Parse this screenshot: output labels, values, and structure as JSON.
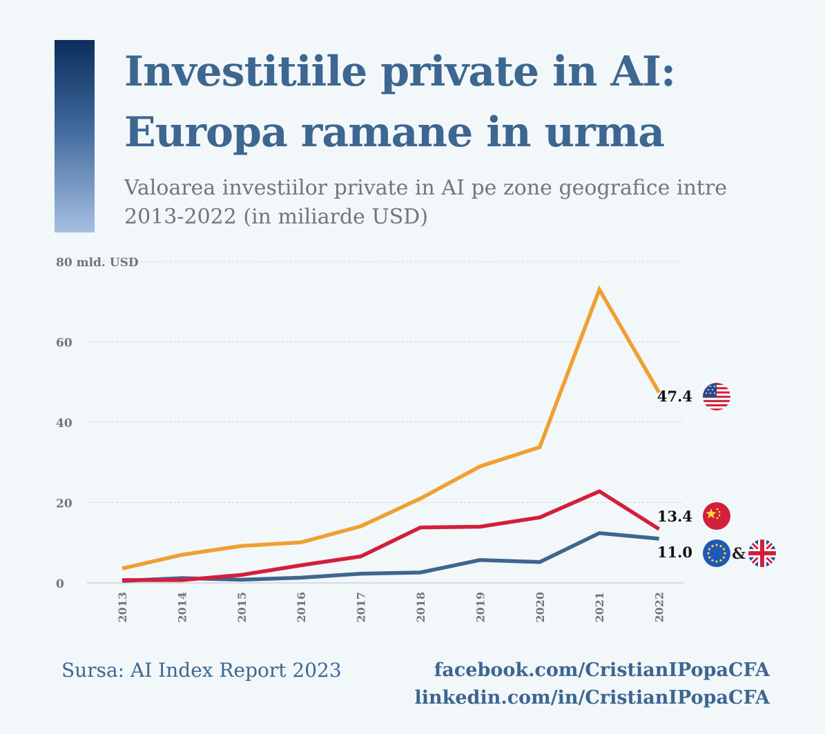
{
  "title_line1": "Investitiile private in AI:",
  "title_line2": "Europa ramane in urma",
  "subtitle_line1": "Valoarea investiilor private in AI pe zone geografice intre",
  "subtitle_line2": "2013-2022 (in miliarde USD)",
  "colors": {
    "accent_dark": "#0b2d5c",
    "accent_light": "#a6bfe2",
    "title": "#3d6690",
    "usa": "#f0a030",
    "china": "#d21f3c",
    "europe": "#3d6690"
  },
  "chart_data": {
    "type": "line",
    "x": [
      "2013",
      "2014",
      "2015",
      "2016",
      "2017",
      "2018",
      "2019",
      "2020",
      "2021",
      "2022"
    ],
    "y_axis": {
      "ticks": [
        0,
        20,
        40,
        60,
        80
      ],
      "tick_labels": [
        "0",
        "20",
        "40",
        "60",
        "80 mld. USD"
      ],
      "ylim": [
        0,
        80
      ]
    },
    "grid": true,
    "series": [
      {
        "key": "usa",
        "values": [
          3.6,
          7.0,
          9.2,
          10.1,
          14.1,
          21.0,
          29.0,
          33.8,
          73.0,
          47.4
        ],
        "end_label": "47.4",
        "flag_icons": [
          "usa-flag-icon"
        ]
      },
      {
        "key": "china",
        "values": [
          0.7,
          0.7,
          2.0,
          4.4,
          6.6,
          13.8,
          14.0,
          16.3,
          22.8,
          13.4
        ],
        "end_label": "13.4",
        "flag_icons": [
          "china-flag-icon"
        ]
      },
      {
        "key": "europe",
        "values": [
          0.5,
          1.2,
          0.8,
          1.3,
          2.3,
          2.6,
          5.7,
          5.2,
          12.4,
          11.0
        ],
        "end_label": "11.0",
        "flag_icons": [
          "eu-flag-icon",
          "uk-flag-icon"
        ],
        "flag_separator": "&"
      }
    ]
  },
  "footer": {
    "source": "Sursa: AI Index Report 2023",
    "facebook": "facebook.com/CristianIPopaCFA",
    "linkedin": "linkedin.com/in/CristianIPopaCFA"
  }
}
